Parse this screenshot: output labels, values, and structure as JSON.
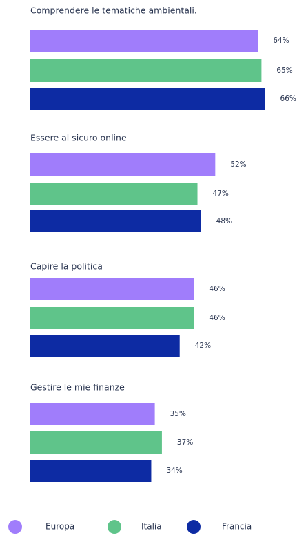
{
  "chart_data": {
    "type": "bar",
    "orientation": "horizontal",
    "categories": [
      "Comprendere le tematiche ambientali.",
      "Essere al sicuro online",
      "Capire la politica",
      "Gestire le mie finanze"
    ],
    "series": [
      {
        "name": "Europa",
        "color": "#a07dfb",
        "values": [
          64,
          52,
          46,
          35
        ],
        "labels": [
          "64%",
          "52%",
          "46%",
          "35%"
        ]
      },
      {
        "name": "Italia",
        "color": "#5fc48a",
        "values": [
          65,
          47,
          46,
          37
        ],
        "labels": [
          "65%",
          "47%",
          "46%",
          "37%"
        ]
      },
      {
        "name": "Francia",
        "color": "#0d2ba3",
        "values": [
          66,
          48,
          42,
          34
        ],
        "labels": [
          "66%",
          "48%",
          "42%",
          "34%"
        ]
      }
    ],
    "unit": "%",
    "xlim": [
      0,
      100
    ],
    "grid": false,
    "legend_position": "bottom"
  }
}
